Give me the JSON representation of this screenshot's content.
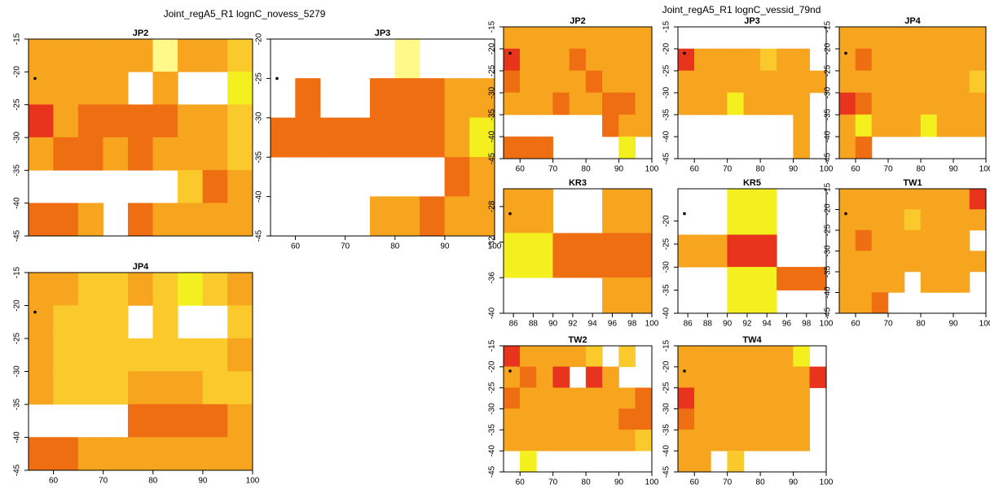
{
  "titles": [
    "Joint_regA5_R1 lognC_novess_5279",
    "Joint_regA5_R1 lognC_vessid_79nd"
  ],
  "chart_data": [
    {
      "type": "heatmap",
      "title": "JP2",
      "xlim": [
        55,
        100
      ],
      "ylim": [
        -45,
        -15
      ],
      "yticks": [
        -15,
        -20,
        -25,
        -30,
        -35,
        -40,
        -45
      ],
      "xbins": [
        55,
        60,
        65,
        70,
        75,
        80,
        85,
        90,
        95,
        100
      ],
      "ybins": [
        -15,
        -20,
        -25,
        -30,
        -35,
        -40,
        -45
      ],
      "cells": [
        [
          "#f7a51e",
          "#f7a51e",
          "#f7a51e",
          "#f7a51e",
          "#f7a51e",
          "#fff98a",
          "#f7a51e",
          "#f7a51e",
          "#fac92c"
        ],
        [
          "#f7a51e",
          "#f7a51e",
          "#f7a51e",
          "#f7a51e",
          null,
          "#f7a51e",
          null,
          null,
          "#f4ef1e"
        ],
        [
          "#e8341c",
          "#f7a51e",
          "#f06e12",
          "#f06e12",
          "#f06e12",
          "#f06e12",
          "#f7a51e",
          "#f7a51e",
          "#fac92c"
        ],
        [
          "#f7a51e",
          "#f06e12",
          "#f06e12",
          "#f7a51e",
          "#f06e12",
          "#f7a51e",
          "#f7a51e",
          "#f7a51e",
          "#fac92c"
        ],
        [
          null,
          null,
          null,
          null,
          null,
          null,
          "#fac92c",
          "#f06e12",
          "#f7a51e"
        ],
        [
          "#f06e12",
          "#f06e12",
          "#f7a51e",
          null,
          "#f06e12",
          "#f7a51e",
          "#f7a51e",
          "#f7a51e",
          "#f7a51e"
        ]
      ]
    },
    {
      "type": "heatmap",
      "title": "JP3",
      "xlim": [
        55,
        100
      ],
      "ylim": [
        -45,
        -20
      ],
      "xticks": [
        60,
        70,
        80,
        90,
        100
      ],
      "yticks": [
        -20,
        -25,
        -30,
        -35,
        -40,
        -45
      ],
      "xbins": [
        55,
        60,
        65,
        70,
        75,
        80,
        85,
        90,
        95,
        100
      ],
      "ybins": [
        -20,
        -25,
        -30,
        -35,
        -40,
        -45
      ],
      "cells": [
        [
          null,
          null,
          null,
          null,
          null,
          "#fff98a",
          null,
          null,
          null
        ],
        [
          null,
          "#f06e12",
          null,
          null,
          "#f06e12",
          "#f06e12",
          "#f06e12",
          "#f7a51e",
          "#f7a51e"
        ],
        [
          "#f06e12",
          "#f06e12",
          "#f06e12",
          "#f06e12",
          "#f06e12",
          "#f06e12",
          "#f06e12",
          "#f7a51e",
          "#f4ef1e"
        ],
        [
          null,
          null,
          null,
          null,
          null,
          null,
          null,
          "#f06e12",
          "#f7a51e"
        ],
        [
          null,
          null,
          null,
          null,
          "#f7a51e",
          "#f7a51e",
          "#f06e12",
          "#f7a51e",
          "#f7a51e"
        ]
      ]
    },
    {
      "type": "heatmap",
      "title": "JP4",
      "xlim": [
        55,
        100
      ],
      "ylim": [
        -45,
        -15
      ],
      "xticks": [
        60,
        70,
        80,
        90,
        100
      ],
      "yticks": [
        -15,
        -20,
        -25,
        -30,
        -35,
        -40,
        -45
      ],
      "xbins": [
        55,
        60,
        65,
        70,
        75,
        80,
        85,
        90,
        95,
        100
      ],
      "ybins": [
        -15,
        -20,
        -25,
        -30,
        -35,
        -40,
        -45
      ],
      "cells": [
        [
          "#f7a51e",
          "#f7a51e",
          "#fac92c",
          "#fac92c",
          "#f7a51e",
          "#fac92c",
          "#f4ef1e",
          "#fac92c",
          "#f7a51e"
        ],
        [
          "#f7a51e",
          "#fac92c",
          "#fac92c",
          "#fac92c",
          null,
          "#fac92c",
          null,
          null,
          "#fac92c"
        ],
        [
          "#f7a51e",
          "#fac92c",
          "#fac92c",
          "#fac92c",
          "#fac92c",
          "#fac92c",
          "#fac92c",
          "#fac92c",
          "#f7a51e"
        ],
        [
          "#f7a51e",
          "#fac92c",
          "#fac92c",
          "#fac92c",
          "#f7a51e",
          "#f7a51e",
          "#f7a51e",
          "#fac92c",
          "#fac92c"
        ],
        [
          null,
          null,
          null,
          null,
          "#f06e12",
          "#f06e12",
          "#f06e12",
          "#f06e12",
          "#f7a51e"
        ],
        [
          "#f06e12",
          "#f06e12",
          "#f7a51e",
          "#f7a51e",
          "#f7a51e",
          "#f7a51e",
          "#f7a51e",
          "#f7a51e",
          "#f7a51e"
        ]
      ]
    },
    {
      "type": "heatmap",
      "title": "JP2",
      "xlim": [
        55,
        100
      ],
      "ylim": [
        -45,
        -15
      ],
      "xticks": [
        60,
        70,
        80,
        90,
        100
      ],
      "yticks": [
        -15,
        -20,
        -25,
        -30,
        -35,
        -40,
        -45
      ],
      "xbins": [
        55,
        60,
        65,
        70,
        75,
        80,
        85,
        90,
        95,
        100
      ],
      "ybins": [
        -15,
        -20,
        -25,
        -30,
        -35,
        -40,
        -45
      ],
      "cells": [
        [
          "#f7a51e",
          "#f7a51e",
          "#f7a51e",
          "#f7a51e",
          "#f7a51e",
          "#f7a51e",
          "#f7a51e",
          "#f7a51e",
          "#f7a51e"
        ],
        [
          "#e8341c",
          "#f7a51e",
          "#f7a51e",
          "#f7a51e",
          "#f06e12",
          "#f7a51e",
          "#f7a51e",
          "#f7a51e",
          "#f7a51e"
        ],
        [
          "#f06e12",
          "#f7a51e",
          "#f7a51e",
          "#f7a51e",
          "#f7a51e",
          "#f06e12",
          "#f7a51e",
          "#f7a51e",
          "#f7a51e"
        ],
        [
          "#f7a51e",
          "#f7a51e",
          "#f7a51e",
          "#f06e12",
          "#f7a51e",
          "#f7a51e",
          "#f06e12",
          "#f06e12",
          "#f7a51e"
        ],
        [
          null,
          null,
          null,
          null,
          null,
          null,
          "#f06e12",
          "#f7a51e",
          "#f7a51e"
        ],
        [
          "#f06e12",
          "#f06e12",
          "#f06e12",
          null,
          null,
          null,
          null,
          "#f4ef1e",
          null
        ]
      ]
    },
    {
      "type": "heatmap",
      "title": "JP3",
      "xlim": [
        55,
        100
      ],
      "ylim": [
        -45,
        -15
      ],
      "xticks": [
        60,
        70,
        80,
        90,
        100
      ],
      "yticks": [
        -15,
        -20,
        -25,
        -30,
        -35,
        -40,
        -45
      ],
      "xbins": [
        55,
        60,
        65,
        70,
        75,
        80,
        85,
        90,
        95,
        100
      ],
      "ybins": [
        -15,
        -20,
        -25,
        -30,
        -35,
        -40,
        -45
      ],
      "cells": [
        [
          null,
          null,
          null,
          null,
          null,
          null,
          null,
          null,
          null
        ],
        [
          "#e8341c",
          "#f7a51e",
          "#f7a51e",
          "#f7a51e",
          "#f7a51e",
          "#fac92c",
          "#f7a51e",
          "#f7a51e",
          null
        ],
        [
          "#f7a51e",
          "#f7a51e",
          "#f7a51e",
          "#f7a51e",
          "#f7a51e",
          "#f7a51e",
          "#f7a51e",
          "#f7a51e",
          "#f7a51e"
        ],
        [
          "#f7a51e",
          "#f7a51e",
          "#f7a51e",
          "#f4ef1e",
          "#f7a51e",
          "#f7a51e",
          "#f7a51e",
          "#f7a51e",
          null
        ],
        [
          null,
          null,
          null,
          null,
          null,
          null,
          null,
          "#f7a51e",
          null
        ],
        [
          null,
          null,
          null,
          null,
          null,
          null,
          null,
          "#f7a51e",
          null
        ]
      ]
    },
    {
      "type": "heatmap",
      "title": "JP4",
      "xlim": [
        55,
        100
      ],
      "ylim": [
        -45,
        -15
      ],
      "xticks": [
        60,
        70,
        80,
        90,
        100
      ],
      "yticks": [
        -15,
        -20,
        -25,
        -30,
        -35,
        -40,
        -45
      ],
      "xbins": [
        55,
        60,
        65,
        70,
        75,
        80,
        85,
        90,
        95,
        100
      ],
      "ybins": [
        -15,
        -20,
        -25,
        -30,
        -35,
        -40,
        -45
      ],
      "cells": [
        [
          "#f7a51e",
          "#f7a51e",
          "#f7a51e",
          "#f7a51e",
          "#f7a51e",
          "#f7a51e",
          "#f7a51e",
          "#f7a51e",
          "#f7a51e"
        ],
        [
          "#f7a51e",
          "#f06e12",
          "#f7a51e",
          "#f7a51e",
          "#f7a51e",
          "#f7a51e",
          "#f7a51e",
          "#f7a51e",
          "#f7a51e"
        ],
        [
          "#f7a51e",
          "#f7a51e",
          "#f7a51e",
          "#f7a51e",
          "#f7a51e",
          "#f7a51e",
          "#f7a51e",
          "#f7a51e",
          "#fac92c"
        ],
        [
          "#e8341c",
          "#f06e12",
          "#f7a51e",
          "#f7a51e",
          "#f7a51e",
          "#f7a51e",
          "#f7a51e",
          "#f7a51e",
          "#f7a51e"
        ],
        [
          "#f7a51e",
          "#f4ef1e",
          "#f7a51e",
          "#f7a51e",
          "#f7a51e",
          "#f4ef1e",
          "#f7a51e",
          "#f7a51e",
          "#f7a51e"
        ],
        [
          "#f7a51e",
          "#f06e12",
          null,
          null,
          null,
          null,
          null,
          null,
          null
        ]
      ]
    },
    {
      "type": "heatmap",
      "title": "KR3",
      "xlim": [
        85,
        100
      ],
      "ylim": [
        -40,
        -26
      ],
      "xticks": [
        86,
        88,
        90,
        92,
        94,
        96,
        98,
        100
      ],
      "yticks": [
        -28,
        -32,
        -36,
        -40
      ],
      "xbins": [
        85,
        90,
        95,
        100
      ],
      "ybins": [
        -26,
        -31,
        -36,
        -40
      ],
      "cells": [
        [
          "#f7a51e",
          null,
          "#f7a51e"
        ],
        [
          "#f4ef1e",
          "#f06e12",
          "#f06e12"
        ],
        [
          null,
          null,
          "#f7a51e"
        ]
      ]
    },
    {
      "type": "heatmap",
      "title": "KR5",
      "xlim": [
        85,
        100
      ],
      "ylim": [
        -40,
        -13
      ],
      "xticks": [
        86,
        88,
        90,
        92,
        94,
        96,
        98,
        100
      ],
      "yticks": [
        -20,
        -25,
        -30,
        -35,
        -40
      ],
      "xbins": [
        85,
        90,
        95,
        100
      ],
      "ybins": [
        -13,
        -23,
        -30,
        -35,
        -40
      ],
      "cells": [
        [
          null,
          "#f4ef1e",
          null
        ],
        [
          "#f7a51e",
          "#e8341c",
          null
        ],
        [
          null,
          "#f4ef1e",
          "#f06e12"
        ],
        [
          null,
          "#f4ef1e",
          null
        ]
      ]
    },
    {
      "type": "heatmap",
      "title": "TW1",
      "xlim": [
        55,
        100
      ],
      "ylim": [
        -45,
        -15
      ],
      "xticks": [
        60,
        70,
        80,
        90,
        100
      ],
      "yticks": [
        -15,
        -20,
        -25,
        -30,
        -35,
        -40,
        -45
      ],
      "xbins": [
        55,
        60,
        65,
        70,
        75,
        80,
        85,
        90,
        95,
        100
      ],
      "ybins": [
        -15,
        -20,
        -25,
        -30,
        -35,
        -40,
        -45
      ],
      "cells": [
        [
          "#f7a51e",
          "#f7a51e",
          "#f7a51e",
          "#f7a51e",
          "#f7a51e",
          "#f7a51e",
          "#f7a51e",
          "#f7a51e",
          "#e8341c"
        ],
        [
          "#f7a51e",
          "#f7a51e",
          "#f7a51e",
          "#f7a51e",
          "#fac92c",
          "#f7a51e",
          "#f7a51e",
          "#f7a51e",
          "#f7a51e"
        ],
        [
          "#f7a51e",
          "#f06e12",
          "#f7a51e",
          "#f7a51e",
          "#f7a51e",
          "#f7a51e",
          "#f7a51e",
          "#f7a51e",
          null
        ],
        [
          "#f7a51e",
          "#f7a51e",
          "#f7a51e",
          "#f7a51e",
          "#f7a51e",
          "#f7a51e",
          "#f7a51e",
          "#f7a51e",
          "#f7a51e"
        ],
        [
          "#f7a51e",
          "#f7a51e",
          "#f7a51e",
          "#f7a51e",
          null,
          "#f7a51e",
          "#f7a51e",
          "#f7a51e",
          null
        ],
        [
          "#f7a51e",
          "#f7a51e",
          "#f06e12",
          null,
          null,
          null,
          null,
          null,
          null
        ]
      ]
    },
    {
      "type": "heatmap",
      "title": "TW2",
      "xlim": [
        55,
        100
      ],
      "ylim": [
        -45,
        -15
      ],
      "xticks": [
        60,
        70,
        80,
        90,
        100
      ],
      "yticks": [
        -15,
        -20,
        -25,
        -30,
        -35,
        -40,
        -45
      ],
      "xbins": [
        55,
        60,
        65,
        70,
        75,
        80,
        85,
        90,
        95,
        100
      ],
      "ybins": [
        -15,
        -20,
        -25,
        -30,
        -35,
        -40,
        -45
      ],
      "cells": [
        [
          "#e8341c",
          "#f7a51e",
          "#f7a51e",
          "#f7a51e",
          "#f7a51e",
          "#fac92c",
          null,
          "#fac92c",
          null
        ],
        [
          "#f7a51e",
          "#f06e12",
          "#f7a51e",
          "#e8341c",
          null,
          "#e8341c",
          "#f7a51e",
          null,
          null
        ],
        [
          "#f06e12",
          "#f7a51e",
          "#f7a51e",
          "#f7a51e",
          "#f7a51e",
          "#f7a51e",
          "#f7a51e",
          "#f7a51e",
          "#f06e12"
        ],
        [
          "#f7a51e",
          "#f7a51e",
          "#f7a51e",
          "#f7a51e",
          "#f7a51e",
          "#f7a51e",
          "#f7a51e",
          "#f06e12",
          "#f06e12"
        ],
        [
          "#f7a51e",
          "#f7a51e",
          "#f7a51e",
          "#f7a51e",
          "#f7a51e",
          "#f7a51e",
          "#f7a51e",
          "#f7a51e",
          "#fac92c"
        ],
        [
          null,
          "#f4ef1e",
          null,
          null,
          null,
          null,
          null,
          null,
          null
        ]
      ]
    },
    {
      "type": "heatmap",
      "title": "TW4",
      "xlim": [
        55,
        100
      ],
      "ylim": [
        -45,
        -15
      ],
      "xticks": [
        60,
        70,
        80,
        90,
        100
      ],
      "yticks": [
        -15,
        -20,
        -25,
        -30,
        -35,
        -40,
        -45
      ],
      "xbins": [
        55,
        60,
        65,
        70,
        75,
        80,
        85,
        90,
        95,
        100
      ],
      "ybins": [
        -15,
        -20,
        -25,
        -30,
        -35,
        -40,
        -45
      ],
      "cells": [
        [
          "#f7a51e",
          "#f7a51e",
          "#f7a51e",
          "#f7a51e",
          "#f7a51e",
          "#f7a51e",
          "#f7a51e",
          "#f4ef1e",
          null
        ],
        [
          "#f7a51e",
          "#f7a51e",
          "#f7a51e",
          "#f7a51e",
          "#f7a51e",
          "#f7a51e",
          "#f7a51e",
          "#f7a51e",
          "#e8341c"
        ],
        [
          "#e8341c",
          "#f7a51e",
          "#f7a51e",
          "#f7a51e",
          "#f7a51e",
          "#f7a51e",
          "#f7a51e",
          "#f7a51e",
          null
        ],
        [
          "#f06e12",
          "#f7a51e",
          "#f7a51e",
          "#f7a51e",
          "#f7a51e",
          "#f7a51e",
          "#f7a51e",
          "#f7a51e",
          null
        ],
        [
          "#f7a51e",
          "#f7a51e",
          "#f7a51e",
          "#f7a51e",
          "#f7a51e",
          "#f7a51e",
          "#f7a51e",
          "#f7a51e",
          null
        ],
        [
          "#f7a51e",
          "#f7a51e",
          null,
          "#fac92c",
          null,
          null,
          null,
          null,
          null
        ]
      ]
    }
  ]
}
